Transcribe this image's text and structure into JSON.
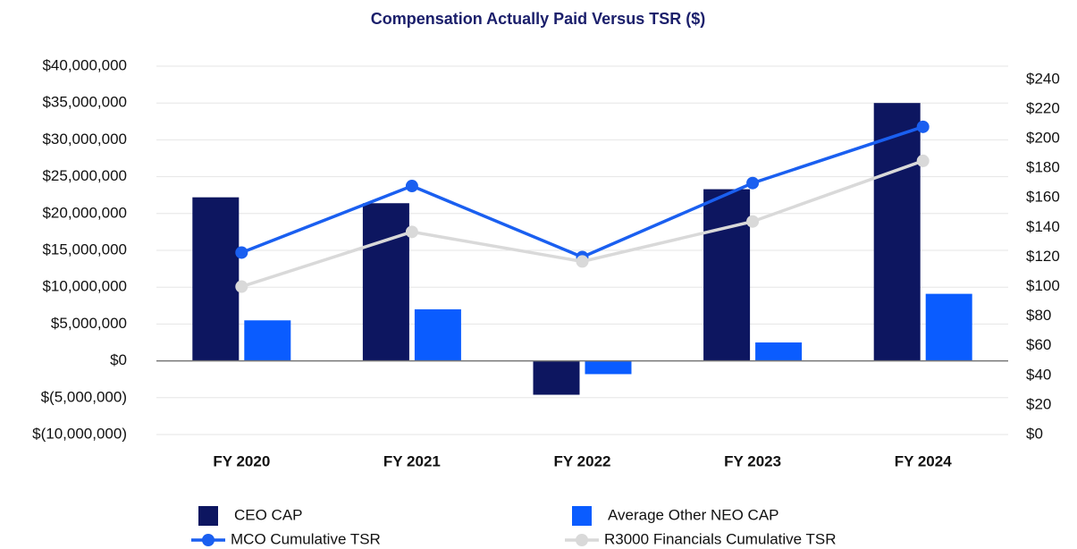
{
  "chart_data": {
    "type": "bar",
    "title": "Compensation Actually Paid Versus TSR ($)",
    "categories": [
      "FY 2020",
      "FY 2021",
      "FY 2022",
      "FY 2023",
      "FY 2024"
    ],
    "series": [
      {
        "name": "CEO CAP",
        "type": "bar",
        "color": "#0d1660",
        "values": [
          22200000,
          21400000,
          -4600000,
          23300000,
          35000000
        ]
      },
      {
        "name": "Average Other NEO CAP",
        "type": "bar",
        "color": "#0a5cff",
        "values": [
          5500000,
          7000000,
          -1800000,
          2500000,
          9100000
        ]
      },
      {
        "name": "MCO Cumulative TSR",
        "type": "line",
        "axis": "y2",
        "color": "#1a5ff0",
        "values": [
          123,
          168,
          120,
          170,
          208
        ]
      },
      {
        "name": "R3000 Financials Cumulative TSR",
        "type": "line",
        "axis": "y2",
        "color": "#d9d9d9",
        "values": [
          100,
          137,
          117,
          144,
          185
        ]
      }
    ],
    "ylim": [
      -10000000,
      40000000
    ],
    "yticks": [
      {
        "value": -10000000,
        "label": "$(10,000,000)"
      },
      {
        "value": -5000000,
        "label": "$(5,000,000)"
      },
      {
        "value": 0,
        "label": "$0"
      },
      {
        "value": 5000000,
        "label": "$5,000,000"
      },
      {
        "value": 10000000,
        "label": "$10,000,000"
      },
      {
        "value": 15000000,
        "label": "$15,000,000"
      },
      {
        "value": 20000000,
        "label": "$20,000,000"
      },
      {
        "value": 25000000,
        "label": "$25,000,000"
      },
      {
        "value": 30000000,
        "label": "$30,000,000"
      },
      {
        "value": 35000000,
        "label": "$35,000,000"
      },
      {
        "value": 40000000,
        "label": "$40,000,000"
      }
    ],
    "y2lim": [
      0,
      249
    ],
    "y2ticks": [
      {
        "value": 0,
        "label": "$0"
      },
      {
        "value": 20,
        "label": "$20"
      },
      {
        "value": 40,
        "label": "$40"
      },
      {
        "value": 60,
        "label": "$60"
      },
      {
        "value": 80,
        "label": "$80"
      },
      {
        "value": 100,
        "label": "$100"
      },
      {
        "value": 120,
        "label": "$120"
      },
      {
        "value": 140,
        "label": "$140"
      },
      {
        "value": 160,
        "label": "$160"
      },
      {
        "value": 180,
        "label": "$180"
      },
      {
        "value": 200,
        "label": "$200"
      },
      {
        "value": 220,
        "label": "$220"
      },
      {
        "value": 240,
        "label": "$240"
      }
    ],
    "grid": true
  }
}
